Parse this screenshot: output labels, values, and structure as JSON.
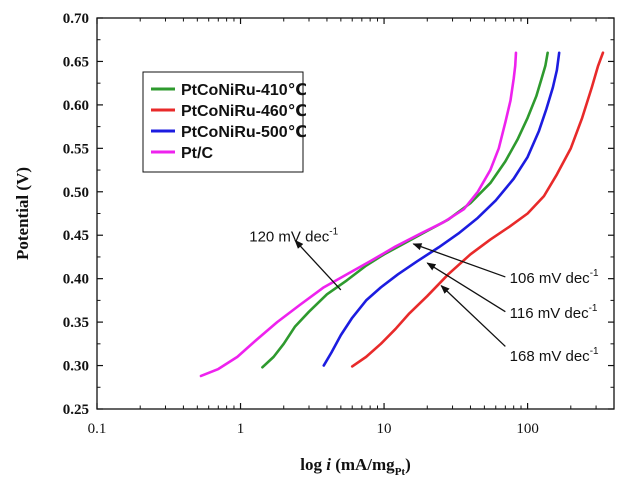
{
  "chart_data": {
    "type": "line",
    "title": "",
    "xlabel": {
      "prefix": "log ",
      "var": "i",
      "unit_open": " (mA/mg",
      "unit_sub": "Pt",
      "unit_close": ")"
    },
    "ylabel": "Potential (V)",
    "xscale": "log",
    "xlim": [
      0.1,
      400
    ],
    "ylim": [
      0.25,
      0.7
    ],
    "xticks": [
      {
        "value": 0.1,
        "label": "0.1"
      },
      {
        "value": 1,
        "label": "1"
      },
      {
        "value": 10,
        "label": "10"
      },
      {
        "value": 100,
        "label": "100"
      }
    ],
    "yticks": [
      {
        "value": 0.25,
        "label": "0.25"
      },
      {
        "value": 0.3,
        "label": "0.30"
      },
      {
        "value": 0.35,
        "label": "0.35"
      },
      {
        "value": 0.4,
        "label": "0.40"
      },
      {
        "value": 0.45,
        "label": "0.45"
      },
      {
        "value": 0.5,
        "label": "0.50"
      },
      {
        "value": 0.55,
        "label": "0.55"
      },
      {
        "value": 0.6,
        "label": "0.60"
      },
      {
        "value": 0.65,
        "label": "0.65"
      },
      {
        "value": 0.7,
        "label": "0.70"
      }
    ],
    "legend": {
      "position": "top-left"
    },
    "series": [
      {
        "name": "PtCoNiRu-410℃",
        "color": "#2e9a2e",
        "points": [
          [
            1.42,
            0.298
          ],
          [
            1.7,
            0.31
          ],
          [
            2.0,
            0.325
          ],
          [
            2.4,
            0.345
          ],
          [
            3.0,
            0.362
          ],
          [
            4.0,
            0.382
          ],
          [
            5.5,
            0.398
          ],
          [
            7.5,
            0.415
          ],
          [
            10,
            0.428
          ],
          [
            14,
            0.441
          ],
          [
            20,
            0.455
          ],
          [
            28,
            0.468
          ],
          [
            40,
            0.487
          ],
          [
            55,
            0.51
          ],
          [
            70,
            0.535
          ],
          [
            85,
            0.56
          ],
          [
            100,
            0.585
          ],
          [
            115,
            0.61
          ],
          [
            125,
            0.63
          ],
          [
            133,
            0.645
          ],
          [
            138,
            0.66
          ]
        ]
      },
      {
        "name": "PtCoNiRu-460℃",
        "color": "#e82a2a",
        "points": [
          [
            6.0,
            0.299
          ],
          [
            7.5,
            0.31
          ],
          [
            9.5,
            0.325
          ],
          [
            12,
            0.342
          ],
          [
            15,
            0.36
          ],
          [
            20,
            0.38
          ],
          [
            28,
            0.405
          ],
          [
            40,
            0.428
          ],
          [
            55,
            0.445
          ],
          [
            75,
            0.46
          ],
          [
            100,
            0.475
          ],
          [
            130,
            0.495
          ],
          [
            160,
            0.52
          ],
          [
            200,
            0.55
          ],
          [
            240,
            0.585
          ],
          [
            280,
            0.62
          ],
          [
            310,
            0.645
          ],
          [
            335,
            0.66
          ]
        ]
      },
      {
        "name": "PtCoNiRu-500℃",
        "color": "#1c1ce0",
        "points": [
          [
            3.8,
            0.3
          ],
          [
            4.3,
            0.315
          ],
          [
            5.0,
            0.335
          ],
          [
            6.0,
            0.355
          ],
          [
            7.5,
            0.375
          ],
          [
            9.5,
            0.39
          ],
          [
            12.5,
            0.405
          ],
          [
            17,
            0.42
          ],
          [
            24,
            0.436
          ],
          [
            33,
            0.452
          ],
          [
            45,
            0.47
          ],
          [
            60,
            0.49
          ],
          [
            80,
            0.515
          ],
          [
            100,
            0.54
          ],
          [
            120,
            0.57
          ],
          [
            135,
            0.595
          ],
          [
            150,
            0.62
          ],
          [
            160,
            0.64
          ],
          [
            166,
            0.66
          ]
        ]
      },
      {
        "name": "Pt/C",
        "color": "#ee22ee",
        "points": [
          [
            0.53,
            0.288
          ],
          [
            0.7,
            0.296
          ],
          [
            0.95,
            0.31
          ],
          [
            1.3,
            0.33
          ],
          [
            1.8,
            0.35
          ],
          [
            2.6,
            0.37
          ],
          [
            3.8,
            0.39
          ],
          [
            5.5,
            0.405
          ],
          [
            8,
            0.42
          ],
          [
            12,
            0.437
          ],
          [
            18,
            0.452
          ],
          [
            26,
            0.465
          ],
          [
            36,
            0.48
          ],
          [
            45,
            0.5
          ],
          [
            55,
            0.525
          ],
          [
            63,
            0.55
          ],
          [
            70,
            0.58
          ],
          [
            76,
            0.605
          ],
          [
            80,
            0.63
          ],
          [
            82,
            0.645
          ],
          [
            83,
            0.66
          ]
        ]
      }
    ],
    "annotations": [
      {
        "base": "120 mV dec",
        "sup": "-1",
        "at": [
          1.15,
          0.443
        ],
        "arrow_from": [
          3.2,
          0.425
        ],
        "arrow_to": [
          2.4,
          0.444
        ],
        "arrow_start": [
          5.0,
          0.387
        ]
      },
      {
        "base": "106 mV dec",
        "sup": "-1",
        "at": [
          75,
          0.395
        ],
        "arrow_start": [
          70,
          0.402
        ],
        "arrow_to": [
          16,
          0.44
        ]
      },
      {
        "base": "116 mV dec",
        "sup": "-1",
        "at": [
          75,
          0.355
        ],
        "arrow_start": [
          70,
          0.362
        ],
        "arrow_to": [
          20,
          0.418
        ]
      },
      {
        "base": "168 mV dec",
        "sup": "-1",
        "at": [
          75,
          0.305
        ],
        "arrow_start": [
          70,
          0.322
        ],
        "arrow_to": [
          25,
          0.392
        ]
      }
    ]
  }
}
